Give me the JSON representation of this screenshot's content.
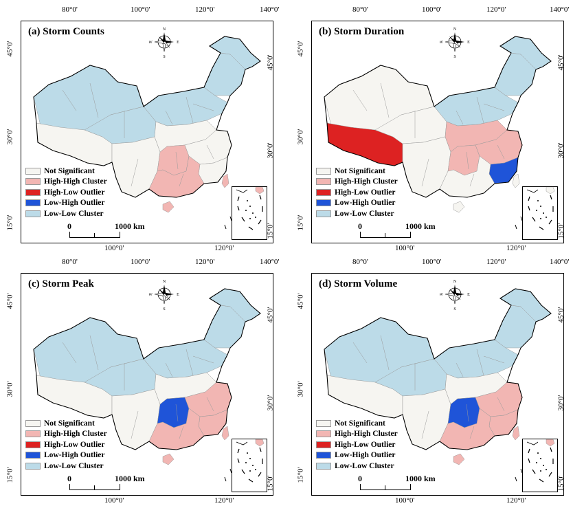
{
  "colors": {
    "not_significant": "#f6f5f1",
    "high_high": "#f2b6b3",
    "high_low": "#dd2222",
    "low_high": "#1f54d8",
    "low_low": "#bcdbe8",
    "border": "#9a9a9a",
    "outline": "#000000"
  },
  "axis": {
    "top_ticks": [
      "80°0'",
      "100°0'",
      "120°0'",
      "140°0'"
    ],
    "bottom_ticks": [
      "100°0'",
      "120°0'"
    ],
    "left_ticks": [
      "45°0'",
      "30°0'",
      "15°0'"
    ],
    "right_ticks": [
      "45°0'",
      "30°0'",
      "15°0'"
    ]
  },
  "compass": {
    "n": "N",
    "s": "S",
    "e": "E",
    "w": "W"
  },
  "legend": [
    {
      "key": "not_significant",
      "label": "Not Significant"
    },
    {
      "key": "high_high",
      "label": "High-High Cluster"
    },
    {
      "key": "high_low",
      "label": "High-Low Outlier"
    },
    {
      "key": "low_high",
      "label": "Low-High Outlier"
    },
    {
      "key": "low_low",
      "label": "Low-Low Cluster"
    }
  ],
  "scale": {
    "zero": "0",
    "length": "1000  km"
  },
  "panels": [
    {
      "title": "(a) Storm Counts",
      "regions": {
        "northwest": "low_low",
        "tibet": "not_significant",
        "qinghai": "low_low",
        "north": "low_low",
        "northeast": "low_low",
        "heilongjiang": "low_low",
        "sichuan_yunnan": "not_significant",
        "central": "not_significant",
        "hunan": "high_high",
        "east": "not_significant",
        "fujian": "not_significant",
        "south": "high_high",
        "hainan": "high_high",
        "taiwan": "high_high"
      }
    },
    {
      "title": "(b) Storm Duration",
      "regions": {
        "northwest": "not_significant",
        "tibet": "high_low",
        "qinghai": "not_significant",
        "north": "low_low",
        "northeast": "low_low",
        "heilongjiang": "low_low",
        "sichuan_yunnan": "not_significant",
        "central": "high_high",
        "hunan": "high_high",
        "east": "high_high",
        "fujian": "low_high",
        "south": "not_significant",
        "hainan": "not_significant",
        "taiwan": "not_significant"
      }
    },
    {
      "title": "(c) Storm Peak",
      "regions": {
        "northwest": "low_low",
        "tibet": "not_significant",
        "qinghai": "low_low",
        "north": "low_low",
        "northeast": "low_low",
        "heilongjiang": "low_low",
        "sichuan_yunnan": "not_significant",
        "central": "not_significant",
        "hunan": "low_high",
        "east": "high_high",
        "fujian": "high_high",
        "south": "high_high",
        "hainan": "high_high",
        "taiwan": "high_high"
      }
    },
    {
      "title": "(d) Storm Volume",
      "regions": {
        "northwest": "low_low",
        "tibet": "not_significant",
        "qinghai": "low_low",
        "north": "low_low",
        "northeast": "low_low",
        "heilongjiang": "low_low",
        "sichuan_yunnan": "not_significant",
        "central": "not_significant",
        "hunan": "low_high",
        "east": "high_high",
        "fujian": "high_high",
        "south": "high_high",
        "hainan": "high_high",
        "taiwan": "high_high"
      }
    }
  ]
}
